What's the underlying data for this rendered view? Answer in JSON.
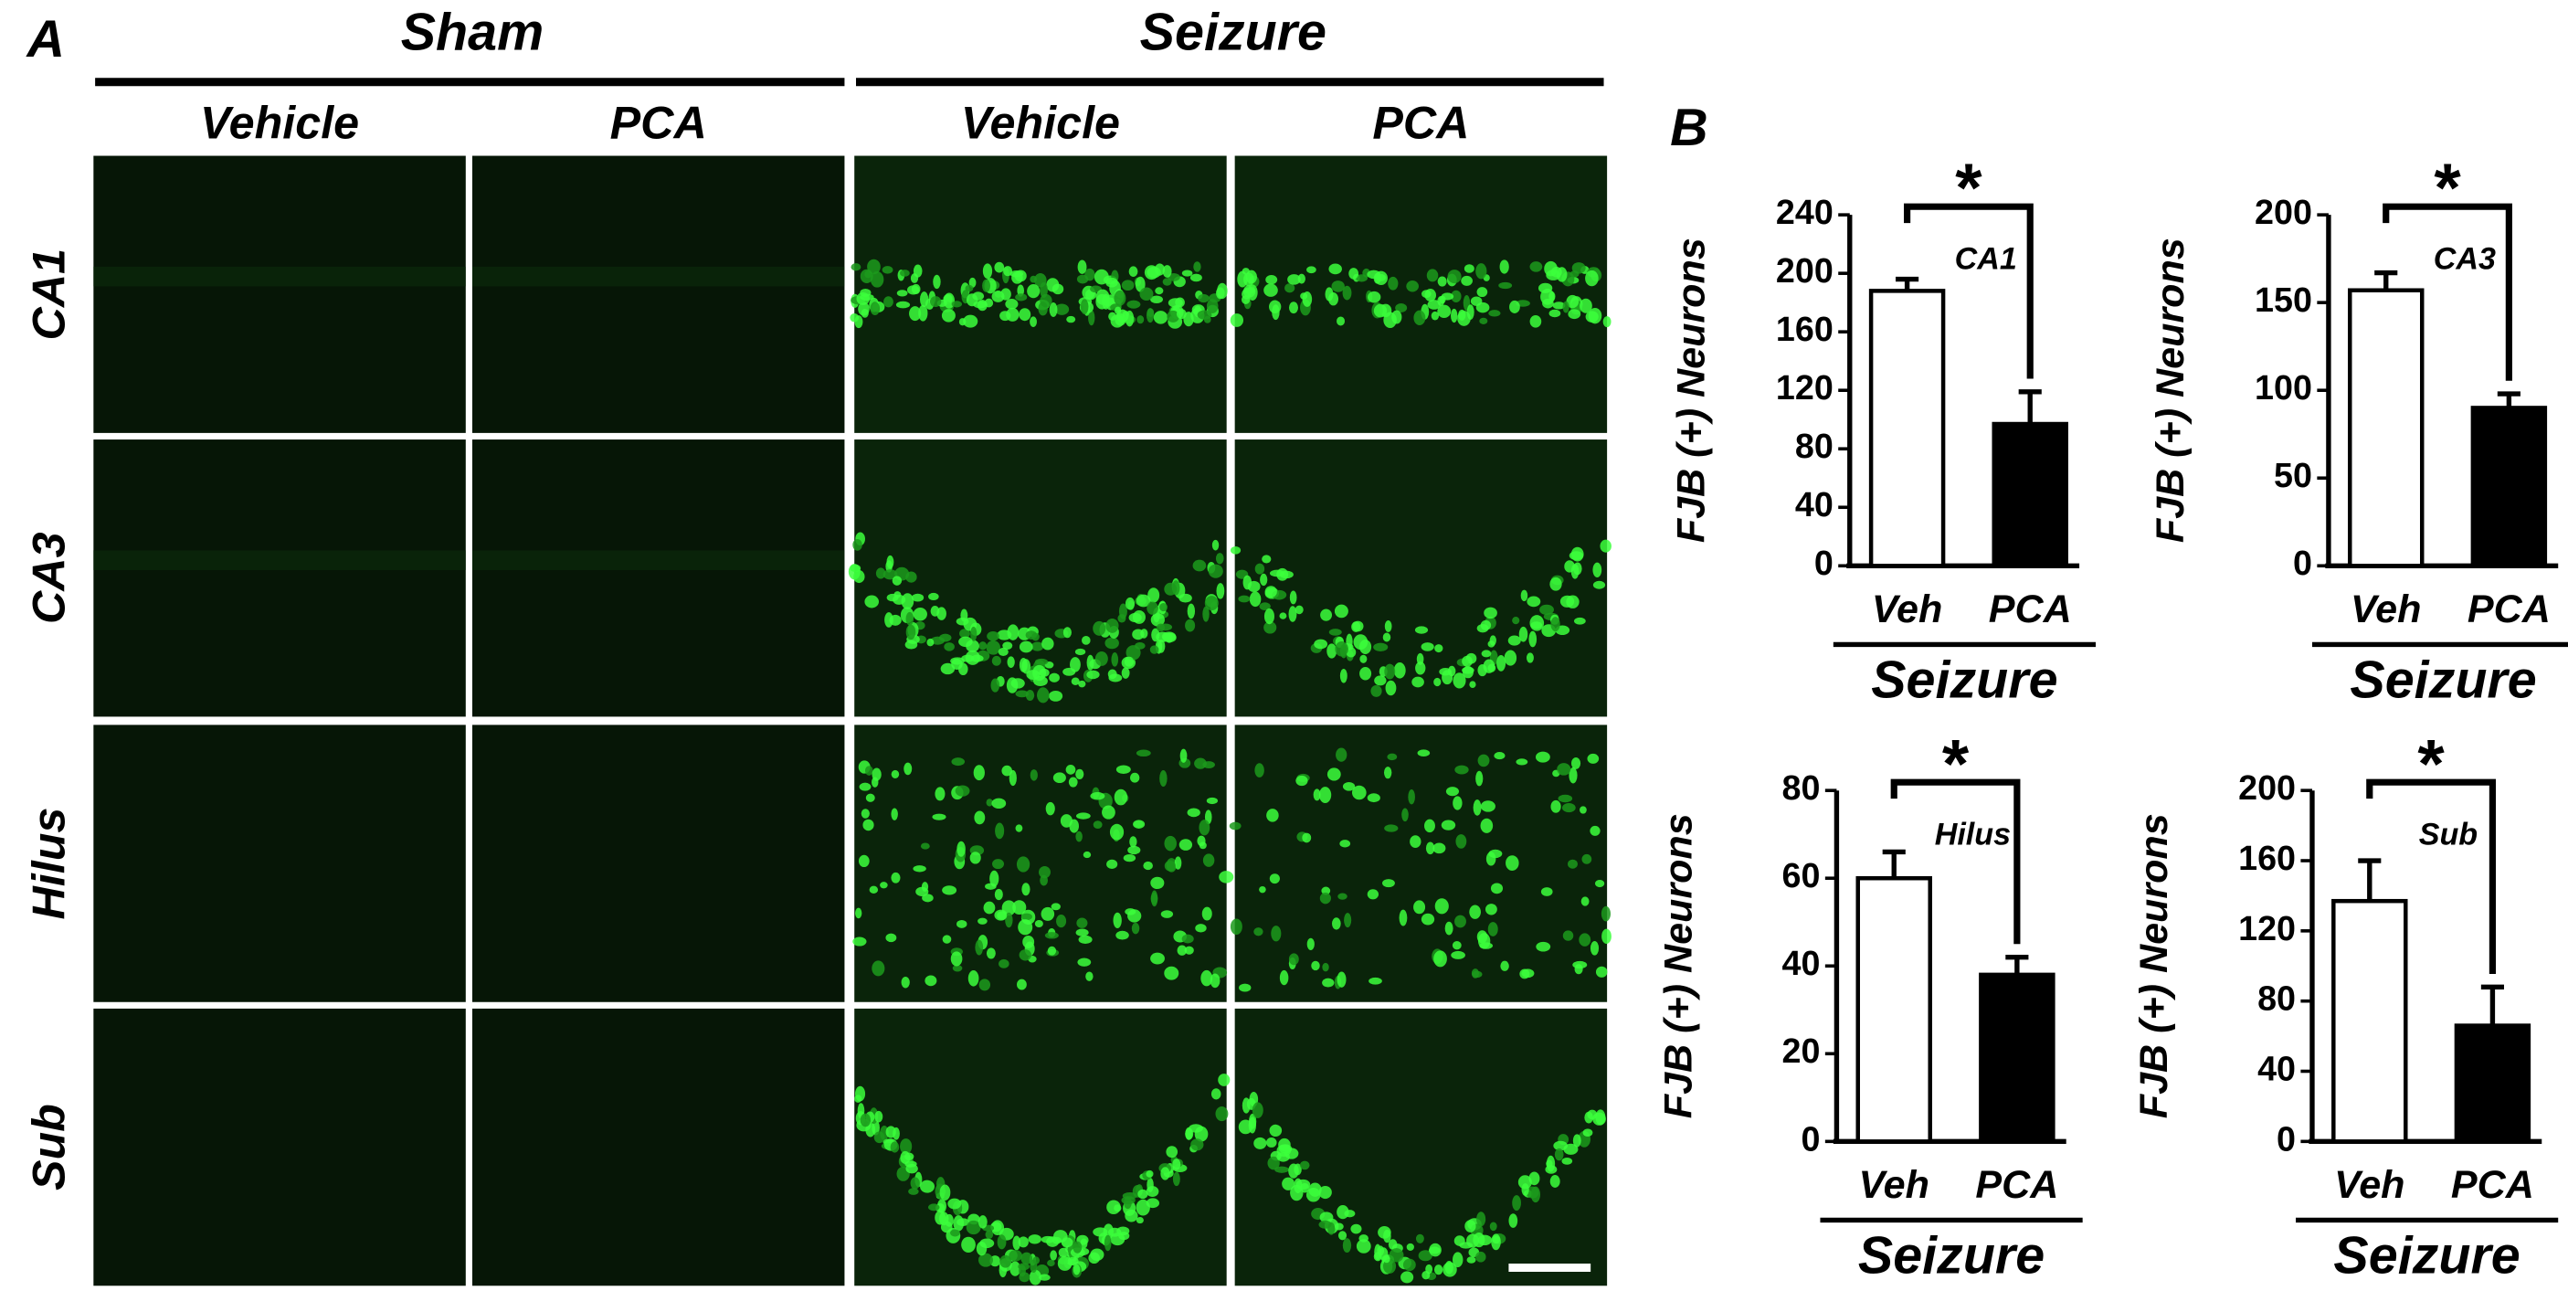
{
  "panel_a": {
    "label": "A",
    "groups": [
      "Sham",
      "Seizure"
    ],
    "columns": [
      "Vehicle",
      "PCA",
      "Vehicle",
      "PCA"
    ],
    "rows": [
      "CA1",
      "CA3",
      "Hilus",
      "Sub"
    ]
  },
  "panel_b": {
    "label": "B"
  },
  "chart_data": [
    {
      "type": "bar",
      "label": "CA1",
      "y_label": "FJB (+) Neurons",
      "x_label": "Seizure",
      "categories": [
        "Veh",
        "PCA"
      ],
      "values": [
        188,
        97
      ],
      "errors": [
        8,
        22
      ],
      "colors": [
        "#ffffff",
        "#000000"
      ],
      "annotation": "*",
      "ylim": [
        0,
        240
      ],
      "yticks": [
        0,
        40,
        80,
        120,
        160,
        200,
        240
      ]
    },
    {
      "type": "bar",
      "label": "CA3",
      "y_label": "FJB (+) Neurons",
      "x_label": "Seizure",
      "categories": [
        "Veh",
        "PCA"
      ],
      "values": [
        157,
        90
      ],
      "errors": [
        10,
        8
      ],
      "colors": [
        "#ffffff",
        "#000000"
      ],
      "annotation": "*",
      "ylim": [
        0,
        200
      ],
      "yticks": [
        0,
        50,
        100,
        150,
        200
      ]
    },
    {
      "type": "bar",
      "label": "Hilus",
      "y_label": "FJB (+) Neurons",
      "x_label": "Seizure",
      "categories": [
        "Veh",
        "PCA"
      ],
      "values": [
        60,
        38
      ],
      "errors": [
        6,
        4
      ],
      "colors": [
        "#ffffff",
        "#000000"
      ],
      "annotation": "*",
      "ylim": [
        0,
        80
      ],
      "yticks": [
        0,
        20,
        40,
        60,
        80
      ]
    },
    {
      "type": "bar",
      "label": "Sub",
      "y_label": "FJB (+) Neurons",
      "x_label": "Seizure",
      "categories": [
        "Veh",
        "PCA"
      ],
      "values": [
        137,
        66
      ],
      "errors": [
        23,
        22
      ],
      "colors": [
        "#ffffff",
        "#000000"
      ],
      "annotation": "*",
      "ylim": [
        0,
        200
      ],
      "yticks": [
        0,
        40,
        80,
        120,
        160,
        200
      ]
    }
  ]
}
